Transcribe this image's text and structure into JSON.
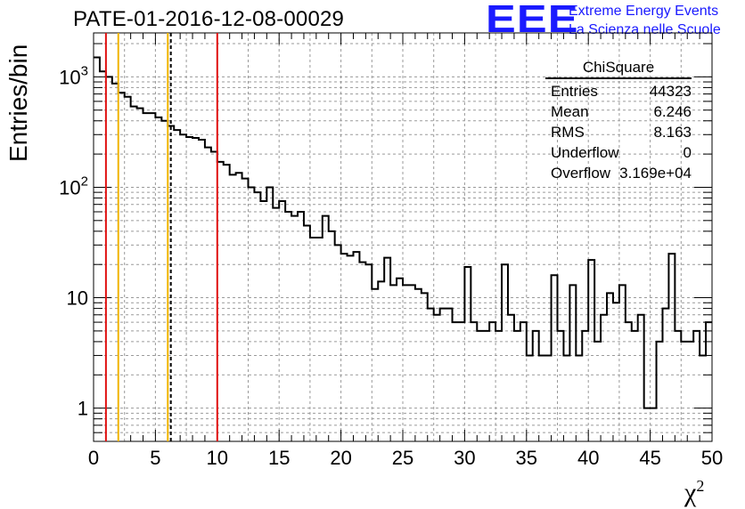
{
  "header": {
    "title": "PATE-01-2016-12-08-00029",
    "logo_mark": "EEE",
    "logo_line1": "Extreme Energy Events",
    "logo_line2": "La Scienza nelle Scuole"
  },
  "stats": {
    "name": "ChiSquare",
    "rows": [
      {
        "label": "Entries",
        "value": "44323"
      },
      {
        "label": "Mean",
        "value": "6.246"
      },
      {
        "label": "RMS",
        "value": "8.163"
      },
      {
        "label": "Underflow",
        "value": "0"
      },
      {
        "label": "Overflow",
        "value": "3.169e+04"
      }
    ]
  },
  "colors": {
    "logo": "#1a1aff",
    "red_line": "#e01010",
    "yellow_line": "#f0b400",
    "hist": "#000000"
  },
  "chart_data": {
    "type": "histogram",
    "title": "PATE-01-2016-12-08-00029",
    "xlabel": "χ",
    "xlabel_superscript": "2",
    "ylabel": "Entries/bin",
    "xlim": [
      0,
      50
    ],
    "ylim": [
      0.5,
      2500
    ],
    "yscale": "log",
    "grid": true,
    "bin_width": 0.5,
    "x_ticks": [
      "0",
      "5",
      "10",
      "15",
      "20",
      "25",
      "30",
      "35",
      "40",
      "45",
      "50"
    ],
    "y_ticks": [
      {
        "value": 1,
        "label": "1"
      },
      {
        "value": 10,
        "label": "10"
      },
      {
        "value": 100,
        "label": "10",
        "exp": "2"
      },
      {
        "value": 1000,
        "label": "10",
        "exp": "3"
      }
    ],
    "counts": [
      1500,
      1120,
      1000,
      870,
      720,
      660,
      540,
      520,
      470,
      470,
      430,
      400,
      360,
      330,
      300,
      285,
      280,
      270,
      230,
      210,
      170,
      160,
      130,
      135,
      120,
      100,
      90,
      75,
      100,
      65,
      75,
      60,
      55,
      60,
      45,
      35,
      35,
      55,
      40,
      30,
      25,
      24,
      26,
      21,
      20,
      12,
      14,
      23,
      13,
      15,
      13,
      13,
      12,
      11,
      8,
      7,
      8,
      8,
      6,
      6,
      19,
      6,
      5,
      5,
      6,
      5,
      20,
      7,
      5,
      6,
      3,
      5,
      3,
      3,
      16,
      5,
      3,
      13,
      3,
      5,
      22,
      4,
      7,
      11,
      9,
      13,
      6,
      5,
      7,
      1,
      1,
      4,
      8,
      25,
      5,
      4,
      4,
      5,
      3,
      6
    ]
  },
  "markers": [
    {
      "x": 1,
      "color": "#e01010",
      "style": "solid"
    },
    {
      "x": 2,
      "color": "#f0b400",
      "style": "solid"
    },
    {
      "x": 6,
      "color": "#f0b400",
      "style": "solid"
    },
    {
      "x": 6.246,
      "color": "#000000",
      "style": "dashed"
    },
    {
      "x": 10,
      "color": "#e01010",
      "style": "solid"
    }
  ]
}
